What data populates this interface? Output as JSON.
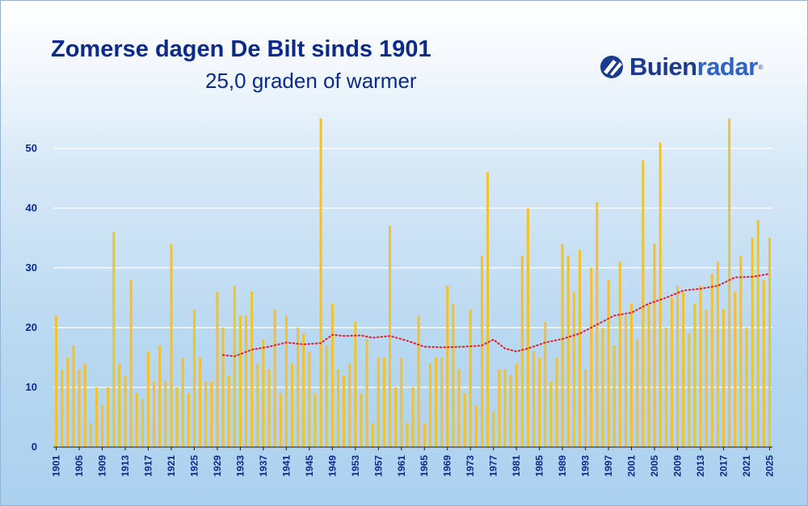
{
  "header": {
    "title": "Zomerse dagen De Bilt sinds 1901",
    "subtitle": "25,0 graden of warmer"
  },
  "logo": {
    "name_part1": "Buien",
    "name_part2": "radar",
    "registered": "®",
    "icon": "buienradar-logo-icon"
  },
  "colors": {
    "bar": "#f2c12e",
    "trend": "#e0202a",
    "axis_text": "#0b2a8a",
    "grid": "#ffffff"
  },
  "chart_data": {
    "type": "bar",
    "title": "Zomerse dagen De Bilt sinds 1901",
    "subtitle": "25,0 graden of warmer",
    "xlabel": "",
    "ylabel": "",
    "ylim": [
      0,
      57
    ],
    "yticks": [
      0,
      10,
      20,
      30,
      40,
      50
    ],
    "grid": true,
    "xtick_labels": [
      "1901",
      "1905",
      "1909",
      "1913",
      "1917",
      "1921",
      "1925",
      "1929",
      "1933",
      "1937",
      "1941",
      "1945",
      "1949",
      "1953",
      "1957",
      "1961",
      "1965",
      "1969",
      "1973",
      "1977",
      "1981",
      "1985",
      "1989",
      "1993",
      "1997",
      "2001",
      "2005",
      "2009",
      "2013",
      "2017",
      "2021",
      "2025"
    ],
    "years_start": 1901,
    "series": [
      {
        "type": "bar",
        "values": [
          22,
          13,
          15,
          17,
          13,
          14,
          4,
          10,
          7,
          10,
          36,
          14,
          12,
          28,
          9,
          8,
          16,
          11,
          17,
          11,
          34,
          10,
          15,
          9,
          23,
          15,
          11,
          11,
          26,
          20,
          12,
          27,
          22,
          22,
          26,
          14,
          18,
          13,
          23,
          9,
          22,
          14,
          20,
          19,
          16,
          9,
          55,
          17,
          24,
          13,
          12,
          14,
          21,
          9,
          18,
          4,
          15,
          15,
          37,
          10,
          15,
          4,
          10,
          22,
          4,
          14,
          15,
          15,
          27,
          24,
          13,
          9,
          23,
          7,
          32,
          46,
          6,
          13,
          13,
          12,
          14,
          32,
          40,
          16,
          15,
          21,
          11,
          15,
          34,
          32,
          26,
          33,
          13,
          30,
          41,
          20,
          28,
          17,
          31,
          22,
          24,
          18,
          48,
          24,
          34,
          51,
          20,
          25,
          27,
          26,
          19,
          24,
          27,
          23,
          29,
          31,
          23,
          55,
          26,
          32,
          20,
          35,
          38,
          28,
          35
        ]
      },
      {
        "type": "line",
        "style": "dotted",
        "x": [
          1930,
          1932,
          1935,
          1938,
          1941,
          1944,
          1947,
          1949,
          1951,
          1954,
          1956,
          1959,
          1962,
          1965,
          1968,
          1972,
          1975,
          1977,
          1979,
          1981,
          1983,
          1986,
          1989,
          1992,
          1995,
          1998,
          2001,
          2004,
          2007,
          2010,
          2013,
          2016,
          2019,
          2022,
          2025
        ],
        "values": [
          15.4,
          15.2,
          16.3,
          16.8,
          17.5,
          17.2,
          17.4,
          18.8,
          18.6,
          18.7,
          18.3,
          18.6,
          17.8,
          16.8,
          16.7,
          16.8,
          17.0,
          18.0,
          16.5,
          16.0,
          16.5,
          17.5,
          18.1,
          19.0,
          20.5,
          22.0,
          22.5,
          24.0,
          25.0,
          26.2,
          26.5,
          27.0,
          28.4,
          28.5,
          29.0
        ]
      }
    ]
  }
}
